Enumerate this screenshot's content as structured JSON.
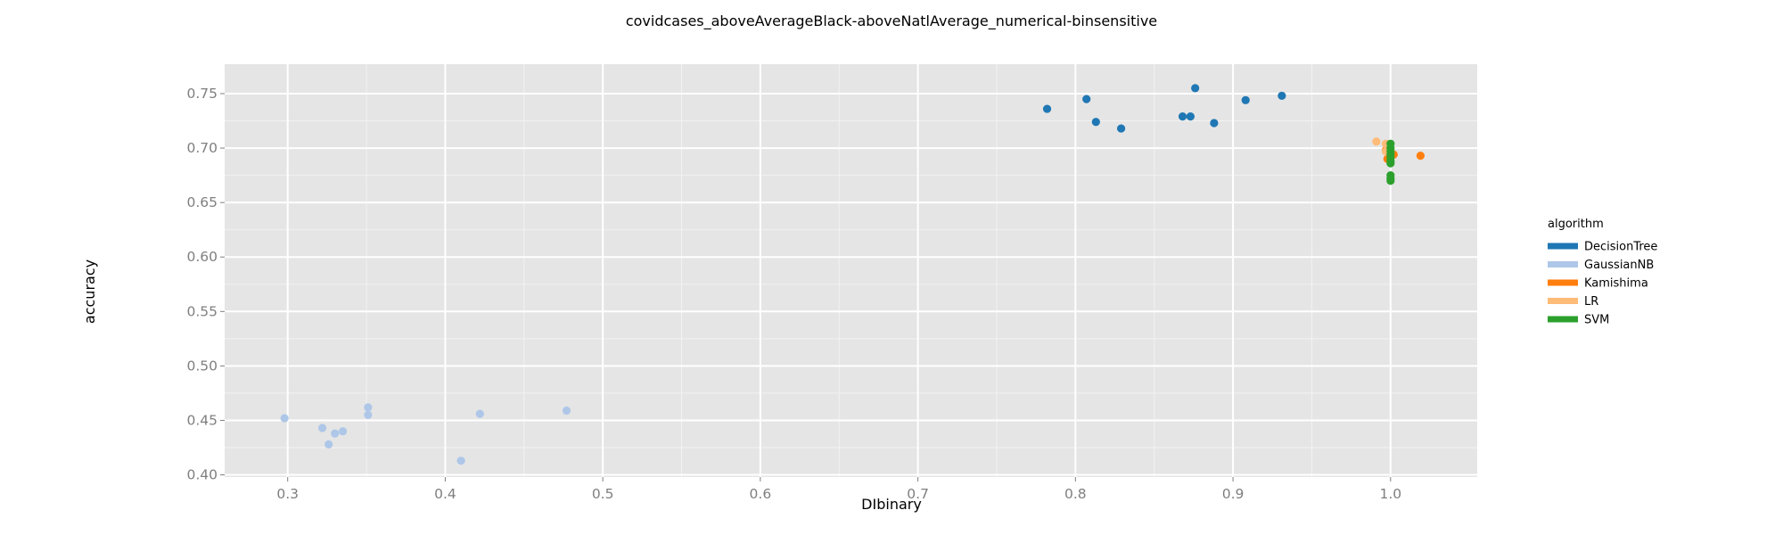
{
  "chart_data": {
    "type": "scatter",
    "title": "covidcases_aboveAverageBlack-aboveNatlAverage_numerical-binsensitive",
    "xlabel": "DIbinary",
    "ylabel": "accuracy",
    "xlim": [
      0.26,
      1.055
    ],
    "ylim": [
      0.398,
      0.777
    ],
    "x_ticks": [
      0.3,
      0.4,
      0.5,
      0.6,
      0.7,
      0.8,
      0.9,
      1.0
    ],
    "x_tick_labels": [
      "0.3",
      "0.4",
      "0.5",
      "0.6",
      "0.7",
      "0.8",
      "0.9",
      "1.0"
    ],
    "y_ticks": [
      0.4,
      0.45,
      0.5,
      0.55,
      0.6,
      0.65,
      0.7,
      0.75
    ],
    "y_tick_labels": [
      "0.40",
      "0.45",
      "0.50",
      "0.55",
      "0.60",
      "0.65",
      "0.70",
      "0.75"
    ],
    "grid": true,
    "legend_title": "algorithm",
    "legend_position": "right",
    "series": [
      {
        "name": "DecisionTree",
        "color": "#1f77b4",
        "points": [
          [
            0.782,
            0.736
          ],
          [
            0.807,
            0.745
          ],
          [
            0.813,
            0.724
          ],
          [
            0.829,
            0.718
          ],
          [
            0.868,
            0.729
          ],
          [
            0.873,
            0.729
          ],
          [
            0.876,
            0.755
          ],
          [
            0.888,
            0.723
          ],
          [
            0.908,
            0.744
          ],
          [
            0.931,
            0.748
          ]
        ]
      },
      {
        "name": "GaussianNB",
        "color": "#aec7e8",
        "points": [
          [
            0.298,
            0.452
          ],
          [
            0.322,
            0.443
          ],
          [
            0.326,
            0.428
          ],
          [
            0.33,
            0.438
          ],
          [
            0.335,
            0.44
          ],
          [
            0.351,
            0.462
          ],
          [
            0.351,
            0.455
          ],
          [
            0.41,
            0.413
          ],
          [
            0.422,
            0.456
          ],
          [
            0.477,
            0.459
          ]
        ]
      },
      {
        "name": "Kamishima",
        "color": "#ff7f0e",
        "points": [
          [
            0.997,
            0.698
          ],
          [
            1.0,
            0.695
          ],
          [
            1.002,
            0.694
          ],
          [
            1.019,
            0.693
          ],
          [
            0.998,
            0.69
          ]
        ]
      },
      {
        "name": "LR",
        "color": "#ffbb78",
        "points": [
          [
            0.991,
            0.706
          ],
          [
            0.997,
            0.704
          ],
          [
            0.999,
            0.7
          ],
          [
            0.997,
            0.697
          ]
        ]
      },
      {
        "name": "SVM",
        "color": "#2ca02c",
        "points": [
          [
            1.0,
            0.704
          ],
          [
            1.0,
            0.7
          ],
          [
            1.0,
            0.697
          ],
          [
            1.0,
            0.694
          ],
          [
            1.0,
            0.691
          ],
          [
            1.0,
            0.688
          ],
          [
            1.0,
            0.686
          ],
          [
            1.0,
            0.675
          ],
          [
            1.0,
            0.672
          ],
          [
            1.0,
            0.67
          ]
        ]
      }
    ]
  }
}
